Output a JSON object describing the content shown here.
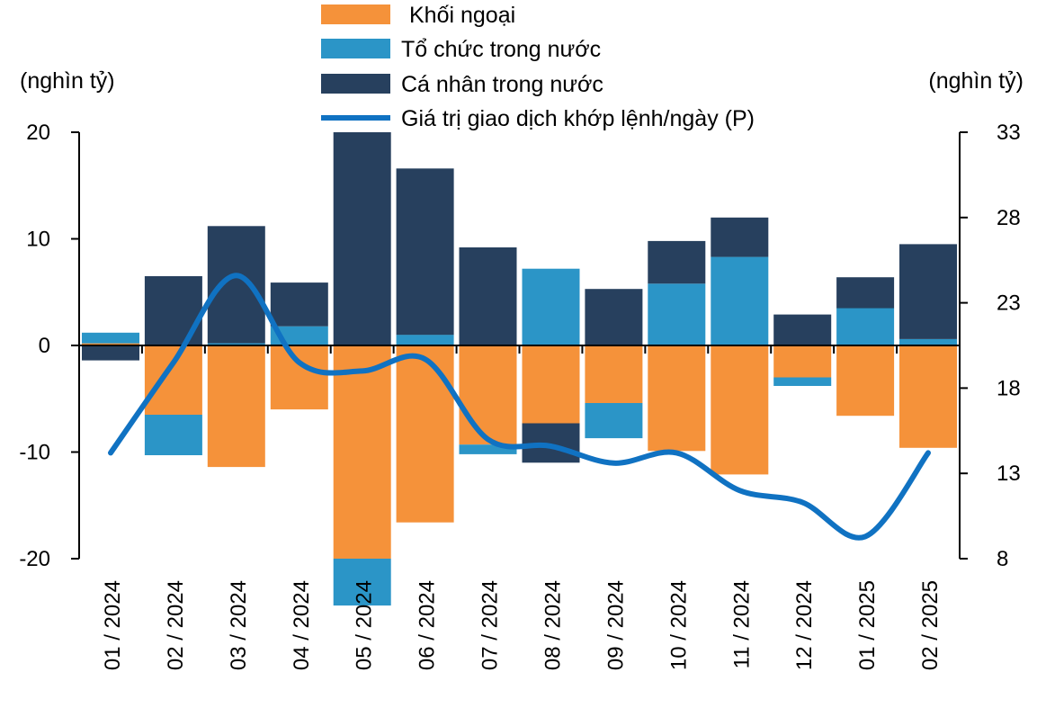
{
  "chart_data": {
    "type": "bar",
    "stacked": true,
    "categories": [
      "01 / 2024",
      "02 / 2024",
      "03 / 2024",
      "04 / 2024",
      "05 / 2024",
      "06 / 2024",
      "07 / 2024",
      "08 / 2024",
      "09 / 2024",
      "10 / 2024",
      "11 / 2024",
      "12 / 2024",
      "01 / 2025",
      "02 / 2025"
    ],
    "y_left": {
      "label": "(nghìn tỷ)",
      "min": -20,
      "max": 20,
      "ticks": [
        20,
        10,
        0,
        -10,
        -20
      ]
    },
    "y_right": {
      "label": "(nghìn tỷ)",
      "min": 8,
      "max": 33,
      "ticks": [
        33,
        28,
        23,
        18,
        13,
        8
      ]
    },
    "legend_position": "top-center",
    "series": [
      {
        "name": "Khối ngoại",
        "axis": "left",
        "color": "#f5923a",
        "values": [
          0.2,
          -6.5,
          -11.4,
          -6.0,
          -20.0,
          -16.6,
          -9.3,
          -7.3,
          -5.4,
          -9.9,
          -12.1,
          -3.0,
          -6.6,
          -9.6
        ]
      },
      {
        "name": "Tổ chức trong nước",
        "axis": "left",
        "color": "#2b95c7",
        "values": [
          1.0,
          -3.8,
          0.2,
          1.8,
          -4.4,
          1.0,
          -0.9,
          7.2,
          -3.3,
          5.8,
          8.3,
          -0.8,
          3.5,
          0.6
        ]
      },
      {
        "name": "Cá nhân trong nước",
        "axis": "left",
        "color": "#27405e",
        "values": [
          -1.4,
          6.5,
          11.0,
          4.1,
          20.0,
          15.6,
          9.2,
          -3.7,
          5.3,
          4.0,
          3.7,
          2.9,
          2.9,
          8.9
        ]
      },
      {
        "name": "Giá trị giao dịch khớp lệnh/ngày (P)",
        "axis": "right",
        "type": "line",
        "color": "#1072c2",
        "values": [
          14.2,
          19.5,
          24.6,
          19.5,
          19.0,
          19.7,
          15.0,
          14.6,
          13.6,
          14.2,
          12.0,
          11.3,
          9.3,
          14.2
        ]
      }
    ]
  }
}
